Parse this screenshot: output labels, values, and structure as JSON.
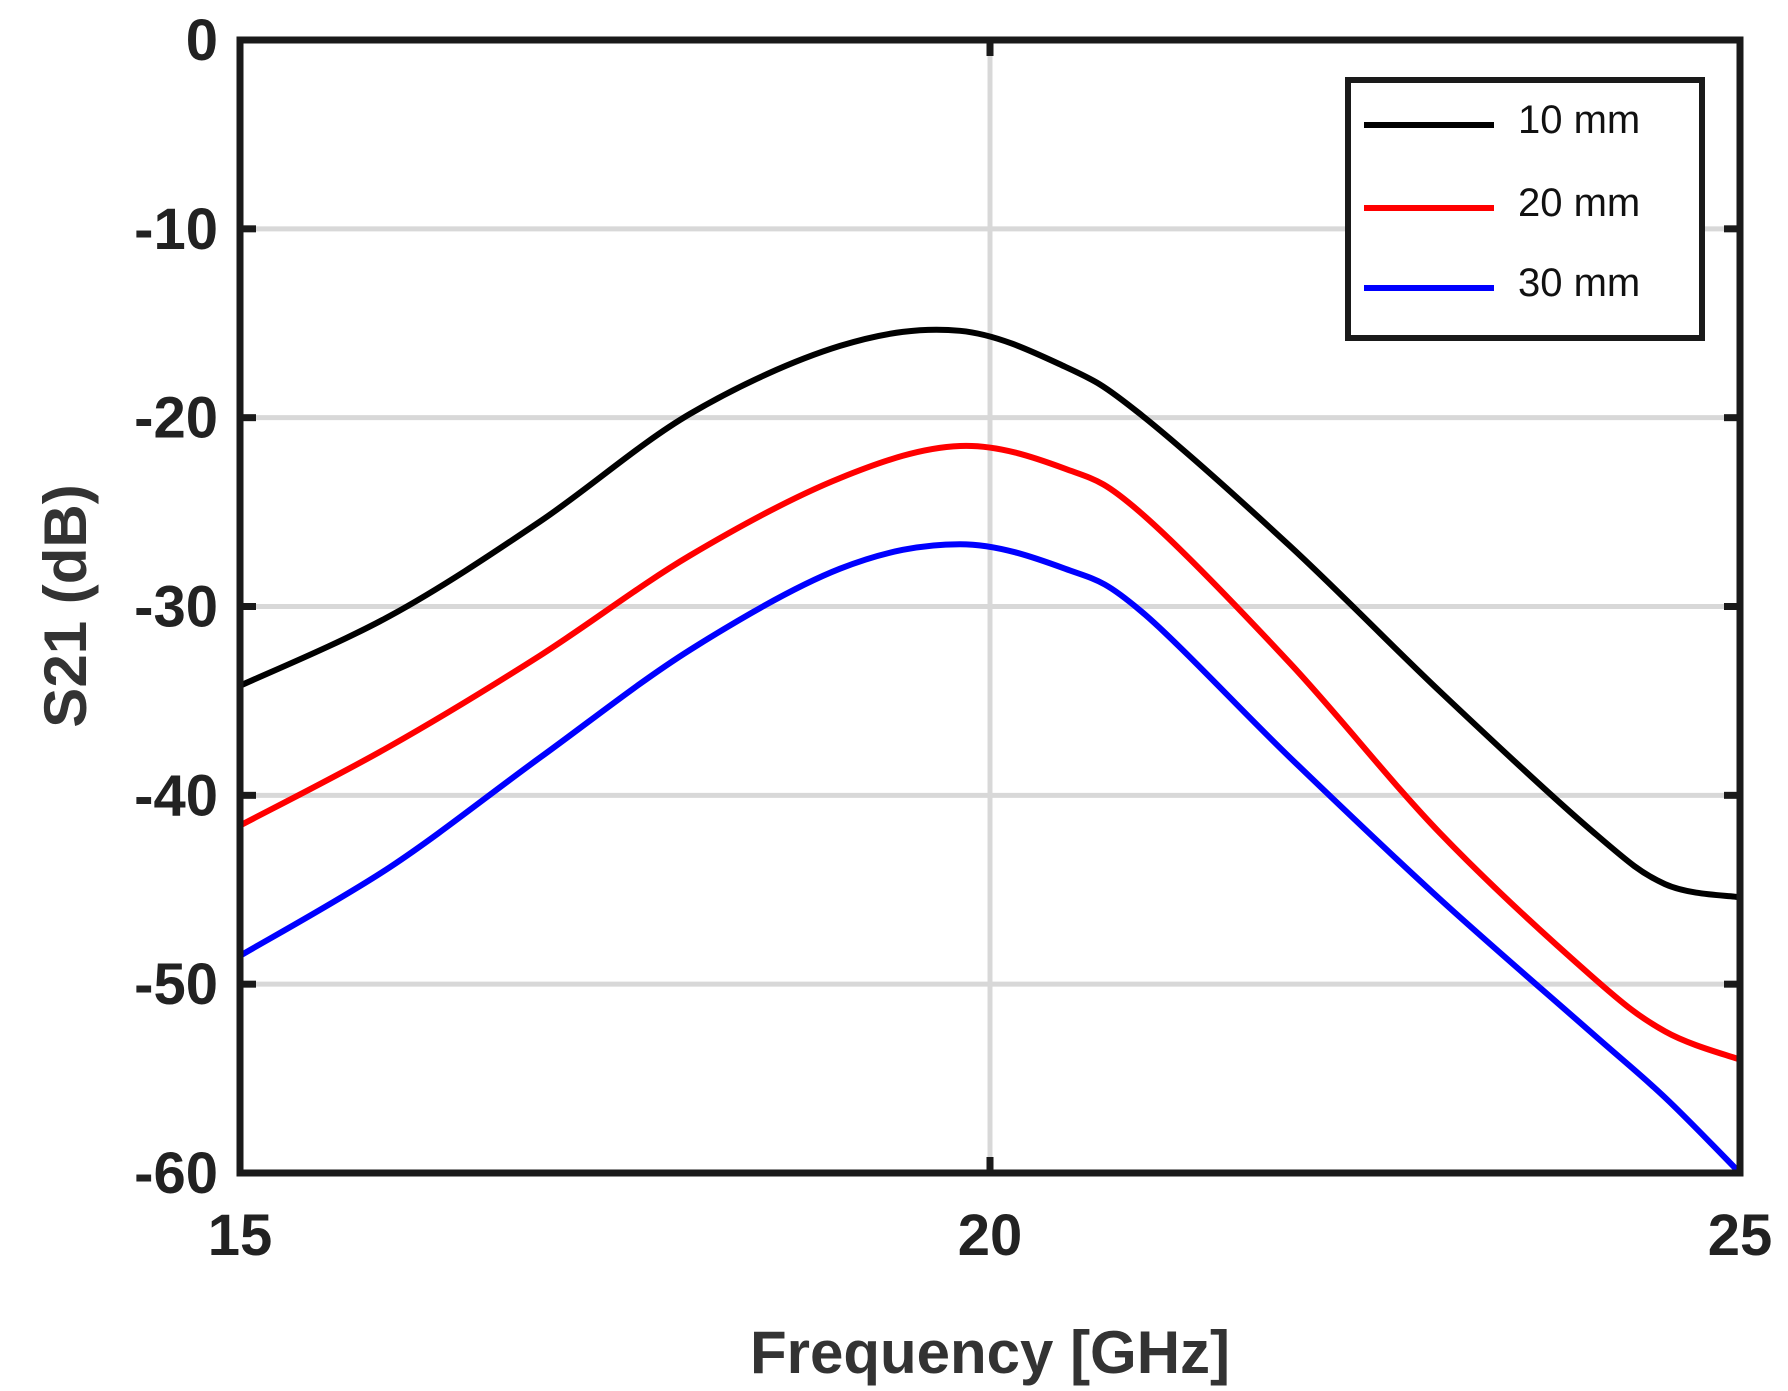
{
  "chart_data": {
    "type": "line",
    "title": "",
    "xlabel": "Frequency [GHz]",
    "ylabel": "S21 (dB)",
    "xlim": [
      15,
      25
    ],
    "ylim": [
      -60,
      0
    ],
    "xticks": [
      15,
      20,
      25
    ],
    "xtick_labels": [
      "15",
      "20",
      "25"
    ],
    "yticks": [
      0,
      -10,
      -20,
      -30,
      -40,
      -50,
      -60
    ],
    "ytick_labels": [
      "0",
      "-10",
      "-20",
      "-30",
      "-40",
      "-50",
      "-60"
    ],
    "grid": true,
    "legend_position": "top-right",
    "series": [
      {
        "name": "10 mm",
        "color": "#000000",
        "x": [
          15,
          16,
          17,
          18,
          19,
          19.8,
          20.5,
          21,
          22,
          23,
          24,
          24.5,
          25
        ],
        "y": [
          -34.2,
          -30.5,
          -25.5,
          -19.8,
          -16.2,
          -15.4,
          -17.3,
          -19.8,
          -26.8,
          -34.5,
          -41.8,
          -44.7,
          -45.4
        ]
      },
      {
        "name": "20 mm",
        "color": "#ff0000",
        "x": [
          15,
          16,
          17,
          18,
          19,
          19.8,
          20.5,
          21,
          22,
          23,
          24,
          24.5,
          25
        ],
        "y": [
          -41.6,
          -37.4,
          -32.6,
          -27.3,
          -23.2,
          -21.5,
          -22.7,
          -25.0,
          -33.0,
          -42.0,
          -49.5,
          -52.5,
          -54.0
        ]
      },
      {
        "name": "30 mm",
        "color": "#0000ff",
        "x": [
          15,
          16,
          17,
          18,
          19,
          19.8,
          20.5,
          21,
          22,
          23,
          24,
          24.5,
          25
        ],
        "y": [
          -48.5,
          -43.8,
          -38.0,
          -32.3,
          -28.0,
          -26.7,
          -28.0,
          -30.2,
          -38.0,
          -45.5,
          -52.5,
          -56.0,
          -60.0
        ]
      }
    ]
  }
}
